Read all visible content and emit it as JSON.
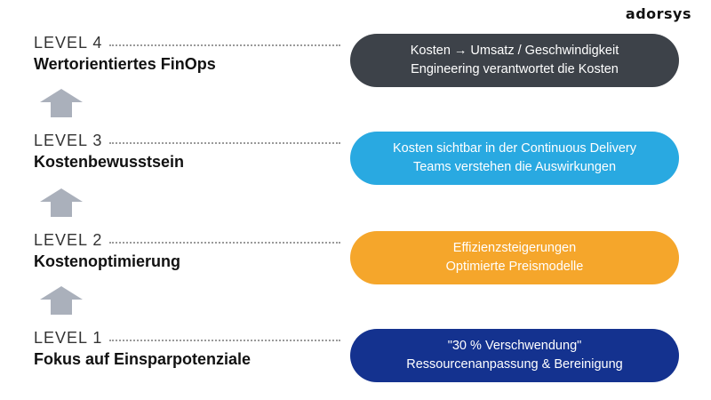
{
  "brand": {
    "logo_text": "adorsys"
  },
  "levels": [
    {
      "label": "LEVEL 4",
      "title": "Wertorientiertes FinOps",
      "description": [
        "Kosten → Umsatz / Geschwindigkeit",
        "Engineering verantwortet die Kosten"
      ],
      "color": "#3d4249"
    },
    {
      "label": "LEVEL 3",
      "title": "Kostenbewusstsein",
      "description": [
        "Kosten sichtbar in der Continuous Delivery",
        "Teams verstehen die Auswirkungen"
      ],
      "color": "#29a9e1"
    },
    {
      "label": "LEVEL 2",
      "title": "Kostenoptimierung",
      "description": [
        "Effizienzsteigerungen",
        "Optimierte Preismodelle"
      ],
      "color": "#f5a62b"
    },
    {
      "label": "LEVEL 1",
      "title": "Fokus auf Einsparpotenziale",
      "description": [
        "\"30 % Verschwendung\"",
        "Ressourcenanpassung & Bereinigung"
      ],
      "color": "#14328f"
    }
  ],
  "arrow_color": "#aab0bb"
}
